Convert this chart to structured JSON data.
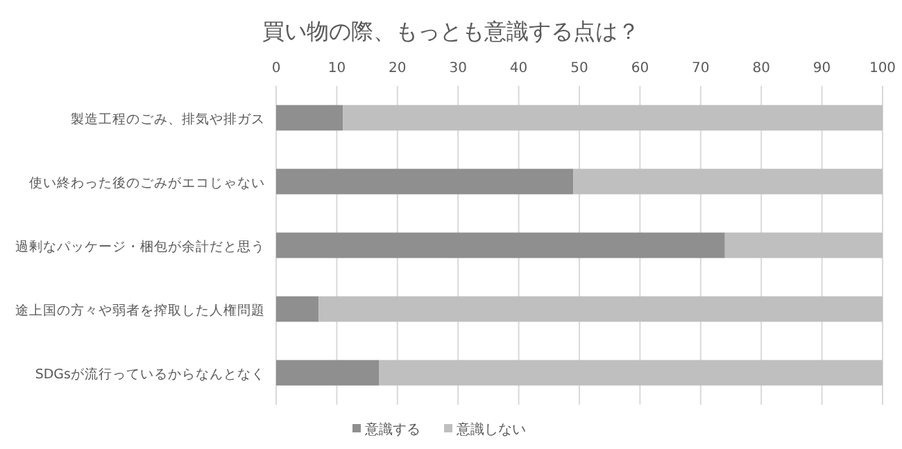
{
  "chart_data": {
    "type": "bar",
    "title": "買い物の際、もっとも意識する点は？",
    "orientation": "horizontal",
    "stacked": true,
    "categories": [
      "製造工程のごみ、排気や排ガス",
      "使い終わった後のごみがエコじゃない",
      "過剰なパッケージ・梱包が余計だと思う",
      "途上国の方々や弱者を搾取した人権問題",
      "SDGsが流行っているからなんとなく"
    ],
    "series": [
      {
        "name": "意識する",
        "color": "#8f8f8f",
        "values": [
          11,
          49,
          74,
          7,
          17
        ]
      },
      {
        "name": "意識しない",
        "color": "#bfbfbf",
        "values": [
          89,
          51,
          26,
          93,
          83
        ]
      }
    ],
    "xlim": [
      0,
      100
    ],
    "xticks": [
      0,
      10,
      20,
      30,
      40,
      50,
      60,
      70,
      80,
      90,
      100
    ],
    "grid": "x",
    "legend": "bottom"
  }
}
